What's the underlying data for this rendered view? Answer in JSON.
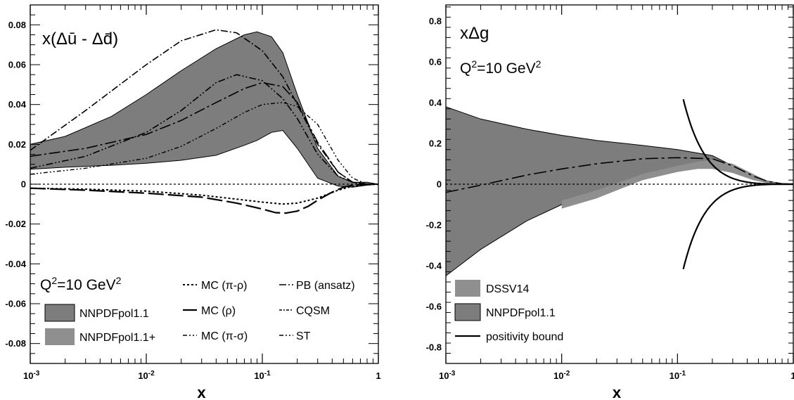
{
  "chart_data": [
    {
      "type": "line",
      "title": "x(Δū - Δd̄)",
      "xlabel": "x",
      "ylabel": "",
      "xscale": "log",
      "xlim": [
        0.001,
        1
      ],
      "ylim": [
        -0.09,
        0.09
      ],
      "x_tick_labels": [
        {
          "x": 0.001,
          "base": "10",
          "exp": "-3"
        },
        {
          "x": 0.01,
          "base": "10",
          "exp": "-2"
        },
        {
          "x": 0.1,
          "base": "10",
          "exp": "-1"
        },
        {
          "x": 1,
          "base": "1",
          "exp": ""
        }
      ],
      "y_ticks": [
        0.08,
        0.06,
        0.04,
        0.02,
        0,
        -0.02,
        -0.04,
        -0.06,
        -0.08
      ],
      "y_tick_labels": [
        "0.08",
        "0.06",
        "0.04",
        "0.02",
        "0",
        "-0.02",
        "-0.04",
        "-0.06",
        "-0.08"
      ],
      "annotation": {
        "base": "Q",
        "sup1": "2",
        "mid": "=10 GeV",
        "sup2": "2"
      },
      "legend_position": "bottom",
      "legend": {
        "bands": [
          "NNPDFpol1.1",
          "NNPDFpol1.1+"
        ],
        "lines_col1": [
          "MC (π-ρ)",
          "MC (ρ)",
          "MC (π-σ)"
        ],
        "lines_col2": [
          "PB (ansatz)",
          "CQSM",
          "ST"
        ]
      },
      "series": [
        {
          "name": "NNPDFpol1.1",
          "kind": "band",
          "x": [
            0.001,
            0.002,
            0.005,
            0.01,
            0.02,
            0.04,
            0.07,
            0.09,
            0.12,
            0.15,
            0.2,
            0.3,
            0.45,
            0.6,
            0.8,
            1.0
          ],
          "upper": [
            0.02,
            0.024,
            0.034,
            0.045,
            0.057,
            0.068,
            0.075,
            0.0765,
            0.074,
            0.066,
            0.045,
            0.018,
            0.004,
            0.001,
            0.001,
            0.0
          ],
          "lower": [
            0.0075,
            0.0085,
            0.0095,
            0.0105,
            0.012,
            0.0145,
            0.0195,
            0.022,
            0.026,
            0.027,
            0.018,
            0.003,
            -0.001,
            -0.0015,
            -0.0005,
            0.0
          ]
        },
        {
          "name": "MC (π-ρ)",
          "dash": "3,3",
          "width": 2,
          "x": [
            0.001,
            0.003,
            0.01,
            0.03,
            0.06,
            0.1,
            0.15,
            0.2,
            0.3,
            0.45,
            0.6,
            0.8,
            1.0
          ],
          "y": [
            -0.002,
            -0.0025,
            -0.0035,
            -0.0055,
            -0.0075,
            -0.009,
            -0.01,
            -0.0095,
            -0.007,
            -0.003,
            -0.001,
            -0.0003,
            0.0
          ]
        },
        {
          "name": "MC (ρ)",
          "dash": "22,6",
          "width": 2.2,
          "x": [
            0.001,
            0.003,
            0.01,
            0.03,
            0.06,
            0.1,
            0.13,
            0.16,
            0.2,
            0.25,
            0.3,
            0.4,
            0.5,
            0.6,
            0.8,
            1.0
          ],
          "y": [
            -0.002,
            -0.003,
            -0.0045,
            -0.0065,
            -0.0095,
            -0.0125,
            -0.0143,
            -0.0145,
            -0.0135,
            -0.011,
            -0.008,
            -0.004,
            -0.0015,
            -0.0005,
            -0.0001,
            0.0
          ]
        },
        {
          "name": "MC (π-σ)",
          "dash": "10,3,2,3,2,3",
          "width": 1.6,
          "x": [
            0.001,
            0.003,
            0.01,
            0.02,
            0.04,
            0.06,
            0.1,
            0.15,
            0.2,
            0.3,
            0.45,
            0.6,
            0.8,
            1.0
          ],
          "y": [
            0.008,
            0.014,
            0.026,
            0.037,
            0.051,
            0.055,
            0.052,
            0.043,
            0.033,
            0.015,
            0.004,
            0.001,
            0.0,
            0.0
          ]
        },
        {
          "name": "PB (ansatz)",
          "dash": "10,3,2,3",
          "width": 1.6,
          "x": [
            0.001,
            0.003,
            0.01,
            0.02,
            0.04,
            0.06,
            0.1,
            0.15,
            0.2,
            0.3,
            0.45,
            0.6,
            0.8,
            1.0
          ],
          "y": [
            0.017,
            0.037,
            0.06,
            0.072,
            0.0775,
            0.076,
            0.067,
            0.054,
            0.04,
            0.02,
            0.006,
            0.001,
            0.0,
            0.0
          ]
        },
        {
          "name": "CQSM",
          "dash": "16,4,3,4",
          "width": 1.6,
          "x": [
            0.001,
            0.003,
            0.01,
            0.02,
            0.04,
            0.07,
            0.1,
            0.15,
            0.2,
            0.3,
            0.45,
            0.6,
            0.8,
            1.0
          ],
          "y": [
            0.014,
            0.018,
            0.025,
            0.032,
            0.041,
            0.048,
            0.051,
            0.049,
            0.041,
            0.021,
            0.006,
            0.001,
            0.0,
            0.0
          ]
        },
        {
          "name": "ST",
          "dash": "6,3,2,3,2,3",
          "width": 1.4,
          "x": [
            0.001,
            0.003,
            0.01,
            0.02,
            0.04,
            0.07,
            0.1,
            0.15,
            0.2,
            0.3,
            0.45,
            0.6,
            0.8,
            1.0
          ],
          "y": [
            0.005,
            0.008,
            0.013,
            0.019,
            0.028,
            0.036,
            0.04,
            0.041,
            0.039,
            0.03,
            0.012,
            0.003,
            0.0,
            0.0
          ]
        }
      ]
    },
    {
      "type": "line",
      "title": "xΔg",
      "xlabel": "x",
      "ylabel": "",
      "xscale": "log",
      "xlim": [
        0.001,
        1
      ],
      "ylim": [
        -0.88,
        0.88
      ],
      "x_tick_labels": [
        {
          "x": 0.001,
          "base": "10",
          "exp": "-3"
        },
        {
          "x": 0.01,
          "base": "10",
          "exp": "-2"
        },
        {
          "x": 0.1,
          "base": "10",
          "exp": "-1"
        },
        {
          "x": 1,
          "base": "1",
          "exp": ""
        }
      ],
      "y_ticks": [
        0.8,
        0.6,
        0.4,
        0.2,
        0,
        -0.2,
        -0.4,
        -0.6,
        -0.8
      ],
      "y_tick_labels": [
        "0.8",
        "0.6",
        "0.4",
        "0.2",
        "0",
        "-0.2",
        "-0.4",
        "-0.6",
        "-0.8"
      ],
      "annotation": {
        "base": "Q",
        "sup1": "2",
        "mid": "=10 GeV",
        "sup2": "2"
      },
      "legend_position": "bottom-left",
      "legend": {
        "items": [
          "DSSV14",
          "NNPDFpol1.1",
          "positivity bound"
        ]
      },
      "series": [
        {
          "name": "NNPDFpol1.1",
          "kind": "band",
          "x": [
            0.001,
            0.002,
            0.005,
            0.01,
            0.02,
            0.05,
            0.1,
            0.2,
            0.3,
            0.45,
            0.6,
            0.8,
            1.0
          ],
          "upper": [
            0.38,
            0.32,
            0.27,
            0.24,
            0.215,
            0.19,
            0.17,
            0.14,
            0.09,
            0.04,
            0.015,
            0.003,
            0.0
          ],
          "lower": [
            -0.45,
            -0.32,
            -0.18,
            -0.1,
            -0.04,
            0.04,
            0.075,
            0.08,
            0.06,
            0.025,
            0.008,
            0.001,
            0.0
          ]
        },
        {
          "name": "DSSV14",
          "kind": "band",
          "x": [
            0.01,
            0.02,
            0.05,
            0.1,
            0.15,
            0.2,
            0.3,
            0.45,
            0.6,
            0.8,
            1.0
          ],
          "upper": [
            -0.08,
            -0.03,
            0.05,
            0.09,
            0.11,
            0.12,
            0.1,
            0.05,
            0.015,
            0.003,
            0.0
          ],
          "lower": [
            -0.12,
            -0.07,
            0.02,
            0.06,
            0.075,
            0.075,
            0.055,
            0.02,
            0.005,
            0.0,
            0.0
          ]
        },
        {
          "name": "central",
          "dash": "18,5,4,5",
          "width": 1.6,
          "x": [
            0.001,
            0.002,
            0.005,
            0.01,
            0.02,
            0.05,
            0.1,
            0.2,
            0.3,
            0.45,
            0.6,
            0.8,
            1.0
          ],
          "y": [
            -0.04,
            -0.005,
            0.045,
            0.075,
            0.1,
            0.125,
            0.13,
            0.125,
            0.09,
            0.04,
            0.014,
            0.002,
            0.0
          ]
        }
      ]
    }
  ]
}
